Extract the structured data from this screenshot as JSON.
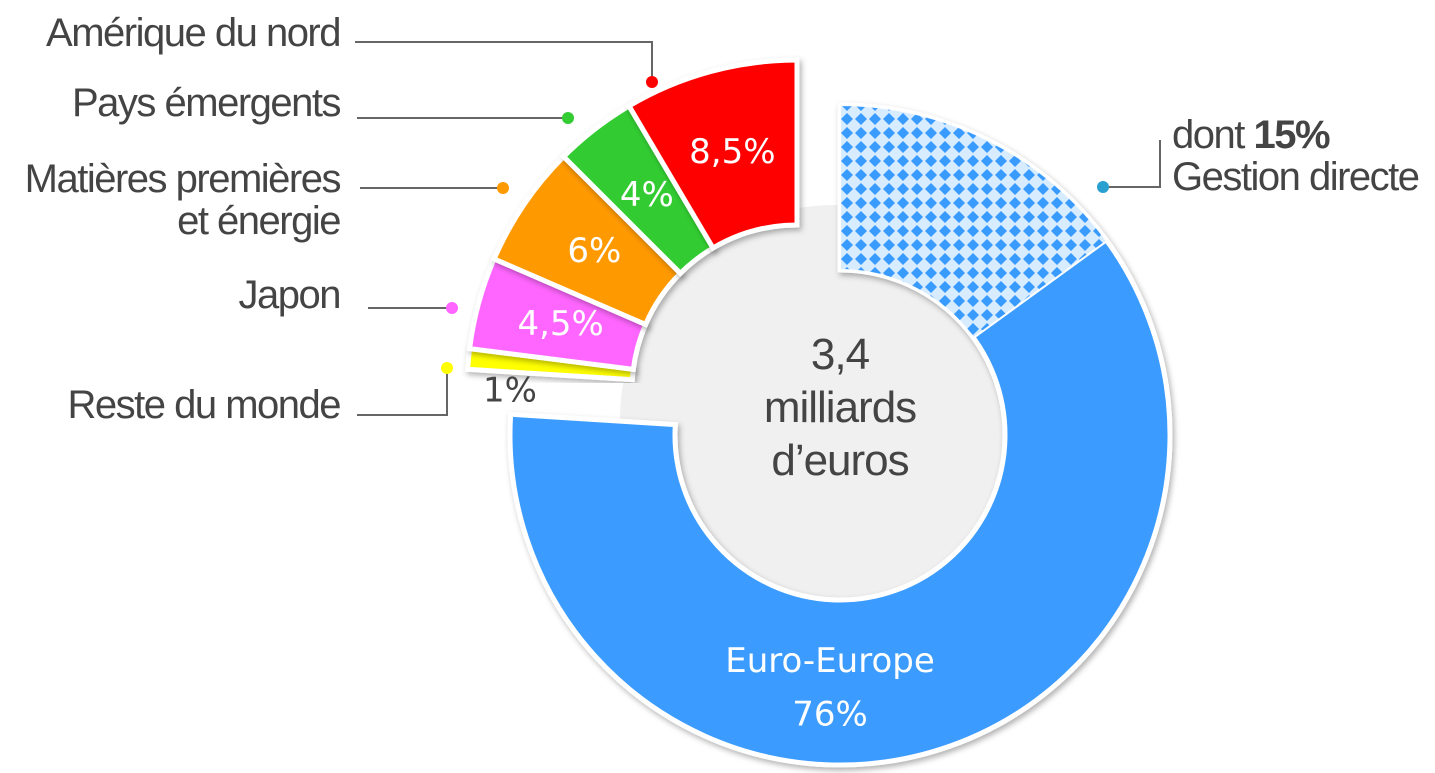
{
  "chart_data": {
    "type": "donut",
    "categories": [
      "Euro-Europe",
      "Reste du monde",
      "Japon",
      "Matières premières\net énergie",
      "Pays émergents",
      "Amérique du nord"
    ],
    "values": [
      76,
      1,
      4.5,
      6,
      4,
      8.5
    ],
    "value_labels": [
      "76%",
      "1%",
      "4,5%",
      "6%",
      "4%",
      "8,5%"
    ],
    "colors": [
      "#3a9bff",
      "#ffff00",
      "#ff66ff",
      "#ff9900",
      "#33cc33",
      "#ff0000"
    ],
    "center_label": "3,4\nmilliards\nd’euros",
    "annotation": {
      "prefix": "dont",
      "value": 15,
      "value_label": "15%",
      "text": "Gestion directe"
    }
  }
}
